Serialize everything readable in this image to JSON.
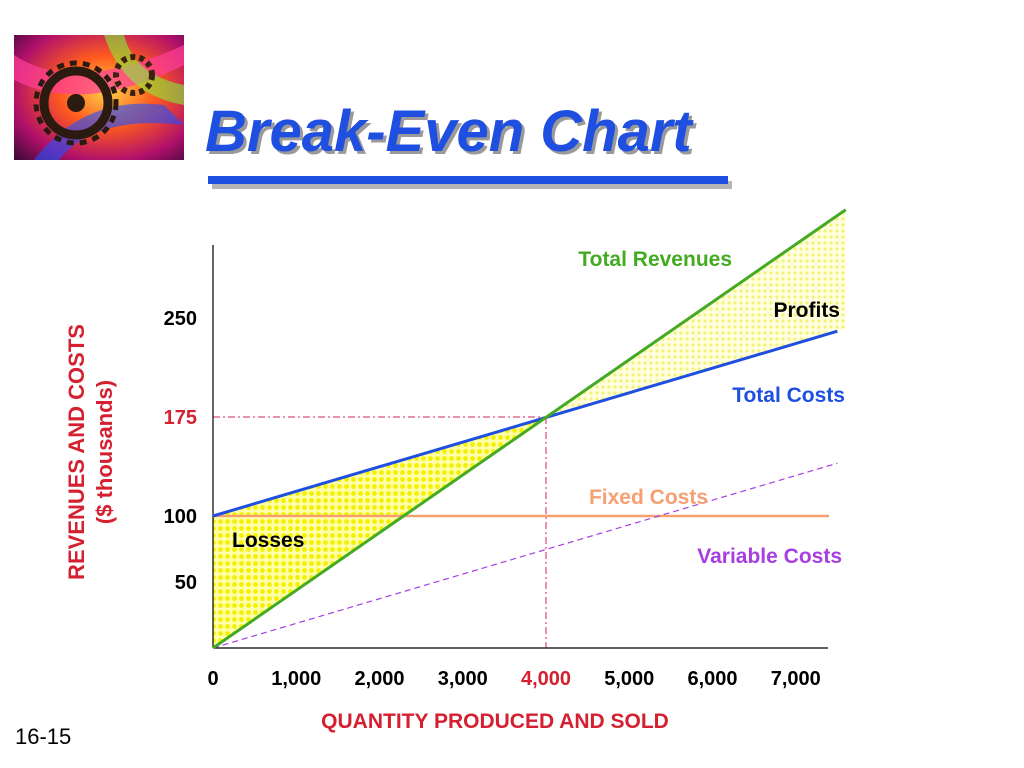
{
  "slide": {
    "title": "Break-Even Chart",
    "slide_number": "16-15",
    "logo": "abstract-gears-image"
  },
  "colors": {
    "title": "#1f4fe0",
    "total_revenues": "#44aa22",
    "total_costs": "#1f4fe0",
    "fixed_costs": "#f5a070",
    "variable_costs": "#a83ee0",
    "axis_labels": "#d42030",
    "fill": "#ffff44"
  },
  "chart_data": {
    "type": "line",
    "title": "Break-Even Chart",
    "xlabel": "QUANTITY PRODUCED AND SOLD",
    "ylabel_line1": "REVENUES AND COSTS",
    "ylabel_line2": "($ thousands)",
    "x_ticks": [
      {
        "value": 0,
        "label": "0"
      },
      {
        "value": 1000,
        "label": "1,000"
      },
      {
        "value": 2000,
        "label": "2,000"
      },
      {
        "value": 3000,
        "label": "3,000"
      },
      {
        "value": 4000,
        "label": "4,000",
        "highlight": true
      },
      {
        "value": 5000,
        "label": "5,000"
      },
      {
        "value": 6000,
        "label": "6,000"
      },
      {
        "value": 7000,
        "label": "7,000"
      }
    ],
    "y_ticks": [
      {
        "value": 50,
        "label": "50"
      },
      {
        "value": 100,
        "label": "100"
      },
      {
        "value": 175,
        "label": "175",
        "highlight": true
      },
      {
        "value": 250,
        "label": "250"
      }
    ],
    "xlim": [
      0,
      7000
    ],
    "ylim": [
      0,
      300
    ],
    "series": [
      {
        "key": "total_revenues",
        "name": "Total Revenues",
        "x": [
          0,
          7600
        ],
        "y": [
          0,
          332
        ],
        "style": "solid"
      },
      {
        "key": "total_costs",
        "name": "Total Costs",
        "x": [
          0,
          7500
        ],
        "y": [
          100,
          240
        ],
        "style": "solid"
      },
      {
        "key": "fixed_costs",
        "name": "Fixed Costs",
        "x": [
          0,
          7400
        ],
        "y": [
          100,
          100
        ],
        "style": "solid"
      },
      {
        "key": "variable_costs",
        "name": "Variable Costs",
        "x": [
          0,
          7500
        ],
        "y": [
          0,
          140
        ],
        "style": "dashed"
      }
    ],
    "break_even": {
      "x": 4000,
      "y": 175
    },
    "regions": [
      {
        "key": "losses",
        "label": "Losses"
      },
      {
        "key": "profits",
        "label": "Profits"
      }
    ],
    "grid": false
  }
}
